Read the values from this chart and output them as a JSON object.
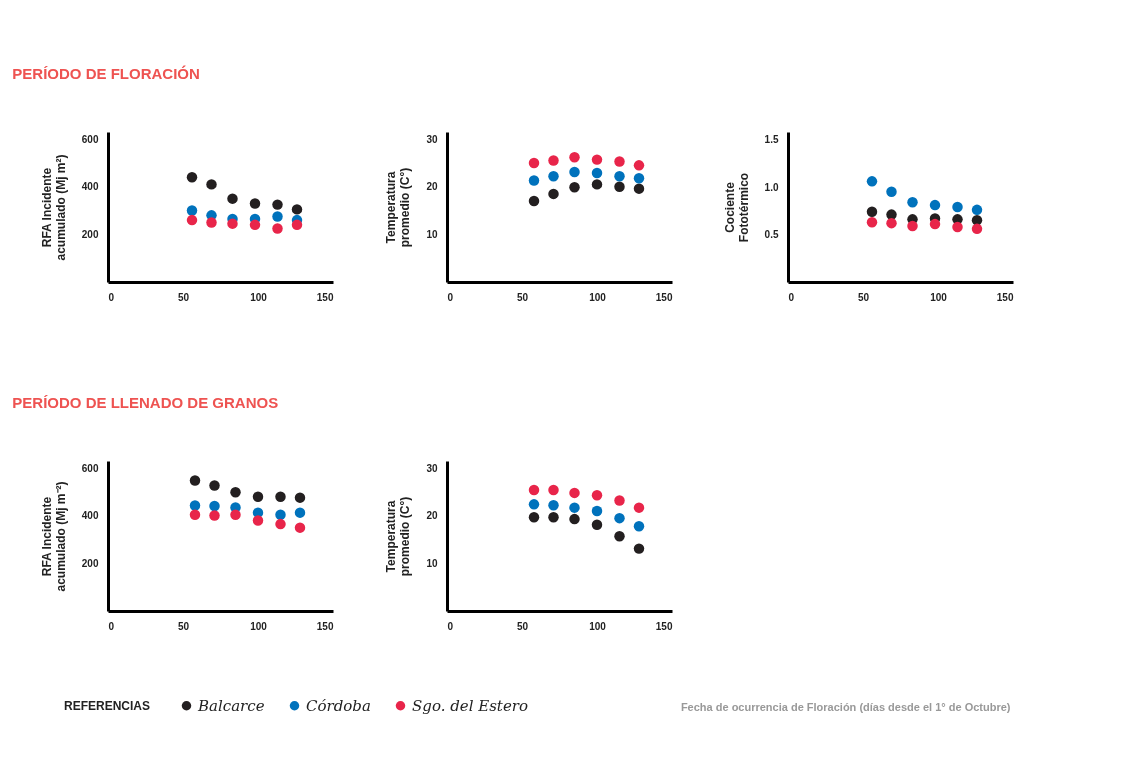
{
  "chart_data": [
    {
      "type": "scatter",
      "title": "PERÍODO DE FLORACIÓN",
      "ylabel": "RFA Incidente\nacumulado (Mj m²)",
      "x": [
        56,
        69,
        83,
        98,
        113,
        126
      ],
      "xlim": [
        0,
        150
      ],
      "xticks": [
        0,
        50,
        100,
        150
      ],
      "ylim": [
        0,
        630
      ],
      "yticks": [
        200,
        400,
        600
      ],
      "marker": "circle",
      "legend": "bottom",
      "legend_title": "REFERENCIAS",
      "series": [
        {
          "name": "Balcarce",
          "color": "#231f20",
          "values": [
            440,
            410,
            350,
            330,
            325,
            305
          ]
        },
        {
          "name": "Córdoba",
          "color": "#0072bc",
          "values": [
            300,
            280,
            265,
            265,
            275,
            260
          ]
        },
        {
          "name": "Sgo. del Estero",
          "color": "#e8254a",
          "values": [
            260,
            250,
            245,
            240,
            225,
            240
          ]
        }
      ]
    },
    {
      "type": "scatter",
      "ylabel": "Temperatura\npromedio (C°)",
      "x": [
        58,
        71,
        85,
        100,
        115,
        128
      ],
      "xlim": [
        0,
        150
      ],
      "xticks": [
        0,
        50,
        100,
        150
      ],
      "ylim": [
        0,
        31.5
      ],
      "yticks": [
        10,
        20,
        30
      ],
      "marker": "circle",
      "legend": "bottom",
      "series": [
        {
          "name": "Balcarce",
          "color": "#231f20",
          "values": [
            17.0,
            18.5,
            19.9,
            20.5,
            20.0,
            19.6
          ]
        },
        {
          "name": "Córdoba",
          "color": "#0072bc",
          "values": [
            21.3,
            22.2,
            23.1,
            22.9,
            22.2,
            21.8
          ]
        },
        {
          "name": "Sgo. del Estero",
          "color": "#e8254a",
          "values": [
            25.0,
            25.5,
            26.2,
            25.7,
            25.3,
            24.5
          ]
        }
      ]
    },
    {
      "type": "scatter",
      "ylabel": "Cociente\nFototérmico",
      "x": [
        56,
        69,
        83,
        98,
        113,
        126
      ],
      "xlim": [
        0,
        150
      ],
      "xticks": [
        0,
        50,
        100,
        150
      ],
      "ylim": [
        0,
        1.58
      ],
      "yticks": [
        0.5,
        {
          "value": 1,
          "label": "1.0"
        },
        1.5
      ],
      "marker": "circle",
      "legend": "bottom",
      "series": [
        {
          "name": "Balcarce",
          "color": "#231f20",
          "values": [
            0.74,
            0.71,
            0.66,
            0.67,
            0.66,
            0.65
          ]
        },
        {
          "name": "Córdoba",
          "color": "#0072bc",
          "values": [
            1.06,
            0.95,
            0.84,
            0.81,
            0.79,
            0.76
          ]
        },
        {
          "name": "Sgo. del Estero",
          "color": "#e8254a",
          "values": [
            0.63,
            0.62,
            0.59,
            0.61,
            0.58,
            0.56
          ]
        }
      ]
    },
    {
      "type": "scatter",
      "title": "PERÍODO DE LLENADO DE GRANOS",
      "ylabel": "RFA Incidente\nacumulado (Mj m⁻²)",
      "x": [
        58,
        71,
        85,
        100,
        115,
        128
      ],
      "xlim": [
        0,
        150
      ],
      "xticks": [
        0,
        50,
        100,
        150
      ],
      "ylim": [
        0,
        630
      ],
      "yticks": [
        200,
        400,
        600
      ],
      "marker": "circle",
      "legend": "bottom",
      "series": [
        {
          "name": "Balcarce",
          "color": "#231f20",
          "values": [
            548,
            527,
            499,
            480,
            480,
            476
          ]
        },
        {
          "name": "Córdoba",
          "color": "#0072bc",
          "values": [
            443,
            441,
            435,
            413,
            404,
            413
          ]
        },
        {
          "name": "Sgo. del Estero",
          "color": "#e8254a",
          "values": [
            404,
            401,
            404,
            380,
            365,
            350
          ]
        }
      ]
    },
    {
      "type": "scatter",
      "ylabel": "Temperatura\npromedio (C°)",
      "xlabel": "Fecha de ocurrencia de Floración  (días desde el 1° de Octubre)",
      "x": [
        58,
        71,
        85,
        100,
        115,
        128
      ],
      "xlim": [
        0,
        150
      ],
      "xticks": [
        0,
        50,
        100,
        150
      ],
      "ylim": [
        0,
        31.5
      ],
      "yticks": [
        10,
        20,
        30
      ],
      "marker": "circle",
      "legend": "bottom",
      "series": [
        {
          "name": "Balcarce",
          "color": "#231f20",
          "values": [
            19.7,
            19.7,
            19.3,
            18.1,
            15.7,
            13.1
          ]
        },
        {
          "name": "Córdoba",
          "color": "#0072bc",
          "values": [
            22.4,
            22.2,
            21.7,
            21.0,
            19.5,
            17.8
          ]
        },
        {
          "name": "Sgo. del Estero",
          "color": "#e8254a",
          "values": [
            25.4,
            25.4,
            24.8,
            24.3,
            23.2,
            21.7
          ]
        }
      ]
    }
  ]
}
